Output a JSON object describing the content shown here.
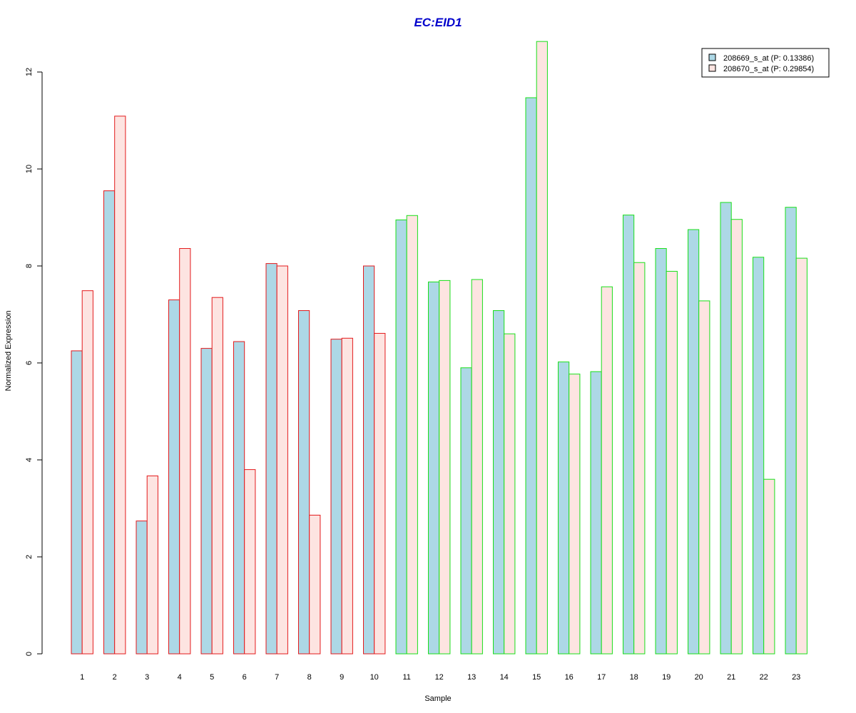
{
  "chart_data": {
    "type": "bar",
    "title": "EC:EID1",
    "xlabel": "Sample",
    "ylabel": "Normalized Expression",
    "ylim": [
      0,
      12.6
    ],
    "y_ticks": [
      0,
      2,
      4,
      6,
      8,
      10,
      12
    ],
    "categories": [
      "1",
      "2",
      "3",
      "4",
      "5",
      "6",
      "7",
      "8",
      "9",
      "10",
      "11",
      "12",
      "13",
      "14",
      "15",
      "16",
      "17",
      "18",
      "19",
      "20",
      "21",
      "22",
      "23"
    ],
    "series": [
      {
        "name": "208669_s_at (P: 0.13386)",
        "fill": "#add8e6",
        "values": [
          6.25,
          9.55,
          2.74,
          7.3,
          6.3,
          6.44,
          8.05,
          7.08,
          6.49,
          8.0,
          8.95,
          7.67,
          5.9,
          7.08,
          11.47,
          6.02,
          5.82,
          9.05,
          8.36,
          8.75,
          9.31,
          8.18,
          9.21
        ]
      },
      {
        "name": "208670_s_at (P: 0.29854)",
        "fill": "#fde4e1",
        "values": [
          7.49,
          11.09,
          3.67,
          8.36,
          7.35,
          3.8,
          8.0,
          2.86,
          6.51,
          6.61,
          9.04,
          7.7,
          7.72,
          6.6,
          12.63,
          5.77,
          7.57,
          8.07,
          7.89,
          7.28,
          8.96,
          3.6,
          8.16
        ]
      }
    ],
    "group_borders": {
      "1": "#e31a1c",
      "2": "#e31a1c",
      "3": "#e31a1c",
      "4": "#e31a1c",
      "5": "#e31a1c",
      "6": "#e31a1c",
      "7": "#e31a1c",
      "8": "#e31a1c",
      "9": "#e31a1c",
      "10": "#e31a1c",
      "11": "#1adf1a",
      "12": "#1adf1a",
      "13": "#1adf1a",
      "14": "#1adf1a",
      "15": "#1adf1a",
      "16": "#1adf1a",
      "17": "#1adf1a",
      "18": "#1adf1a",
      "19": "#1adf1a",
      "20": "#1adf1a",
      "21": "#1adf1a",
      "22": "#1adf1a",
      "23": "#1adf1a"
    },
    "title_color": "#0000cc",
    "legend_position": "top-right",
    "grid": false
  }
}
